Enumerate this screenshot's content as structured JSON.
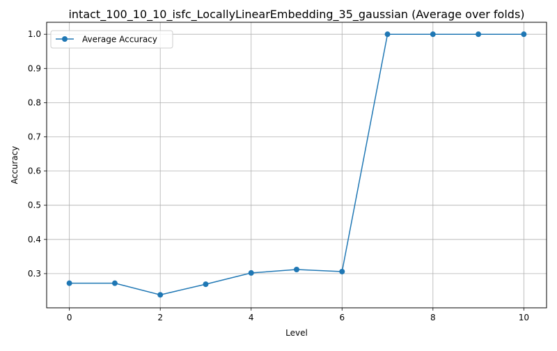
{
  "chart_data": {
    "type": "line",
    "title": "intact_100_10_10_isfc_LocallyLinearEmbedding_35_gaussian (Average over folds)",
    "xlabel": "Level",
    "ylabel": "Accuracy",
    "x": [
      0,
      1,
      2,
      3,
      4,
      5,
      6,
      7,
      8,
      9,
      10
    ],
    "series": [
      {
        "name": "Average Accuracy",
        "values": [
          0.272,
          0.272,
          0.238,
          0.269,
          0.302,
          0.312,
          0.306,
          1.0,
          1.0,
          1.0,
          1.0
        ],
        "color": "#1f77b4",
        "marker": "circle"
      }
    ],
    "xlim": [
      -0.5,
      10.5
    ],
    "ylim": [
      0.2,
      1.035
    ],
    "xticks": [
      0,
      2,
      4,
      6,
      8,
      10
    ],
    "yticks": [
      0.3,
      0.4,
      0.5,
      0.6,
      0.7,
      0.8,
      0.9,
      1.0
    ],
    "ytick_labels": [
      "0.3",
      "0.4",
      "0.5",
      "0.6",
      "0.7",
      "0.8",
      "0.9",
      "1.0"
    ],
    "grid": true,
    "legend_position": "top-left"
  }
}
